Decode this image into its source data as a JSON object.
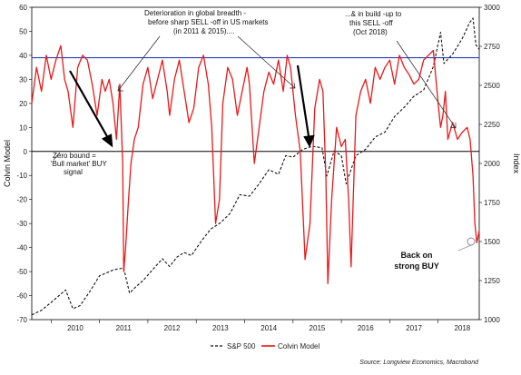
{
  "chart_data": {
    "type": "line",
    "ylabel_left": "Colvin Model",
    "ylabel_right": "Index",
    "ylim_left": [
      -70,
      60
    ],
    "ylim_right": [
      1000,
      3000
    ],
    "xlim": [
      2009.6,
      2018.85
    ],
    "x_ticks": [
      "2010",
      "2011",
      "2012",
      "2013",
      "2014",
      "2015",
      "2016",
      "2017",
      "2018"
    ],
    "y_ticks_left": [
      "60",
      "50",
      "40",
      "30",
      "20",
      "10",
      "0",
      "-10",
      "-20",
      "-30",
      "-40",
      "-50",
      "-60",
      "-70"
    ],
    "y_ticks_right": [
      "3000",
      "2750",
      "2500",
      "2250",
      "2000",
      "1750",
      "1500",
      "1250",
      "1000"
    ],
    "reference_lines": [
      {
        "value": 39,
        "axis": "left",
        "color": "#2e3fbf"
      },
      {
        "value": 0,
        "axis": "left",
        "color": "#000000"
      }
    ],
    "series": [
      {
        "name": "S&P 500",
        "axis": "right",
        "color": "#111111",
        "style": "dashed",
        "x": [
          2009.6,
          2009.8,
          2010.0,
          2010.15,
          2010.3,
          2010.45,
          2010.6,
          2010.8,
          2011.0,
          2011.3,
          2011.5,
          2011.62,
          2011.75,
          2011.9,
          2012.1,
          2012.3,
          2012.45,
          2012.6,
          2012.75,
          2012.9,
          2013.1,
          2013.3,
          2013.5,
          2013.7,
          2013.9,
          2014.1,
          2014.3,
          2014.5,
          2014.7,
          2014.85,
          2015.0,
          2015.2,
          2015.4,
          2015.6,
          2015.7,
          2015.85,
          2016.0,
          2016.1,
          2016.3,
          2016.5,
          2016.7,
          2016.9,
          2017.1,
          2017.3,
          2017.5,
          2017.7,
          2017.9,
          2018.05,
          2018.12,
          2018.3,
          2018.5,
          2018.65,
          2018.72,
          2018.78,
          2018.85
        ],
        "values": [
          1030,
          1060,
          1110,
          1150,
          1190,
          1070,
          1090,
          1180,
          1280,
          1320,
          1330,
          1170,
          1210,
          1250,
          1320,
          1390,
          1340,
          1400,
          1430,
          1410,
          1500,
          1580,
          1620,
          1680,
          1800,
          1790,
          1870,
          1960,
          1930,
          2050,
          2040,
          2090,
          2110,
          2100,
          1920,
          2080,
          2050,
          1870,
          2050,
          2090,
          2170,
          2200,
          2300,
          2360,
          2430,
          2470,
          2620,
          2840,
          2640,
          2700,
          2800,
          2900,
          2930,
          2760,
          2730
        ]
      },
      {
        "name": "Colvin Model",
        "axis": "left",
        "color": "#e8191a",
        "style": "solid",
        "x": [
          2009.6,
          2009.7,
          2009.8,
          2009.9,
          2010.0,
          2010.1,
          2010.2,
          2010.28,
          2010.35,
          2010.45,
          2010.55,
          2010.65,
          2010.75,
          2010.85,
          2010.95,
          2011.05,
          2011.12,
          2011.2,
          2011.28,
          2011.35,
          2011.42,
          2011.48,
          2011.5,
          2011.54,
          2011.6,
          2011.65,
          2011.72,
          2011.8,
          2011.9,
          2012.0,
          2012.1,
          2012.2,
          2012.3,
          2012.4,
          2012.45,
          2012.55,
          2012.65,
          2012.75,
          2012.85,
          2012.95,
          2013.05,
          2013.15,
          2013.25,
          2013.32,
          2013.4,
          2013.48,
          2013.55,
          2013.65,
          2013.75,
          2013.85,
          2013.95,
          2014.05,
          2014.1,
          2014.2,
          2014.3,
          2014.4,
          2014.5,
          2014.6,
          2014.7,
          2014.8,
          2014.88,
          2014.95,
          2015.05,
          2015.15,
          2015.25,
          2015.35,
          2015.45,
          2015.55,
          2015.62,
          2015.68,
          2015.72,
          2015.8,
          2015.9,
          2016.0,
          2016.08,
          2016.15,
          2016.2,
          2016.3,
          2016.4,
          2016.5,
          2016.6,
          2016.7,
          2016.8,
          2016.9,
          2017.0,
          2017.1,
          2017.2,
          2017.3,
          2017.4,
          2017.5,
          2017.6,
          2017.7,
          2017.8,
          2017.9,
          2018.0,
          2018.05,
          2018.1,
          2018.15,
          2018.2,
          2018.3,
          2018.4,
          2018.5,
          2018.6,
          2018.66,
          2018.72,
          2018.76,
          2018.8,
          2018.85
        ],
        "values": [
          20,
          35,
          25,
          40,
          30,
          38,
          44,
          30,
          25,
          10,
          35,
          40,
          38,
          28,
          15,
          30,
          25,
          30,
          20,
          5,
          28,
          -5,
          -50,
          -40,
          -20,
          -5,
          5,
          10,
          28,
          35,
          22,
          30,
          38,
          25,
          15,
          30,
          38,
          25,
          12,
          18,
          35,
          40,
          28,
          10,
          -30,
          -20,
          20,
          35,
          30,
          15,
          25,
          35,
          28,
          -5,
          10,
          25,
          33,
          28,
          38,
          25,
          40,
          35,
          15,
          0,
          -45,
          -30,
          18,
          30,
          25,
          -10,
          -55,
          -20,
          10,
          2,
          5,
          -20,
          -48,
          15,
          25,
          30,
          20,
          35,
          30,
          35,
          38,
          28,
          40,
          35,
          32,
          28,
          30,
          38,
          40,
          42,
          20,
          10,
          15,
          25,
          5,
          12,
          5,
          8,
          10,
          5,
          -10,
          -30,
          -38,
          -33
        ]
      }
    ],
    "annotations": [
      "Deterioration in global breadth  -",
      "before sharp SELL  -off in US markets",
      "(in 2011 & 2015)....",
      "...& in build  -up to",
      "this SELL  -off",
      "(Oct 2018)",
      "Zero bound =",
      "'Bull market' BUY",
      "signal",
      "Back on",
      "strong BUY"
    ],
    "legend": [
      "S&P 500",
      "Colvin Model"
    ],
    "source": "Source: Longview Economics, Macrobond"
  }
}
